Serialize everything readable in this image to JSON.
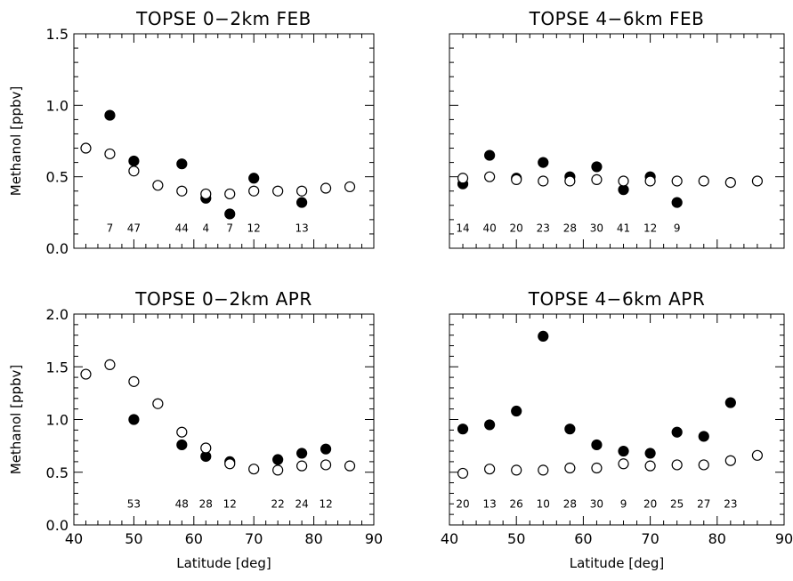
{
  "chart_data": [
    {
      "type": "scatter",
      "title": "TOPSE   0−2km FEB",
      "xlabel": "",
      "ylabel": "Methanol [ppbv]",
      "xlim": [
        40,
        90
      ],
      "ylim": [
        0.0,
        1.5
      ],
      "xticks": [],
      "yticks": [
        "0.0",
        "0.5",
        "1.0",
        "1.5"
      ],
      "series": [
        {
          "marker": "filled",
          "x": [
            46,
            50,
            58,
            62,
            66,
            70,
            78
          ],
          "y": [
            0.93,
            0.61,
            0.59,
            0.35,
            0.24,
            0.49,
            0.32
          ]
        },
        {
          "marker": "open",
          "x": [
            42,
            46,
            50,
            54,
            58,
            62,
            66,
            70,
            74,
            78,
            82,
            86
          ],
          "y": [
            0.7,
            0.66,
            0.54,
            0.44,
            0.4,
            0.38,
            0.38,
            0.4,
            0.4,
            0.4,
            0.42,
            0.43
          ]
        }
      ],
      "counts": [
        {
          "x": 46,
          "label": "7"
        },
        {
          "x": 50,
          "label": "47"
        },
        {
          "x": 58,
          "label": "44"
        },
        {
          "x": 62,
          "label": "4"
        },
        {
          "x": 66,
          "label": "7"
        },
        {
          "x": 70,
          "label": "12"
        },
        {
          "x": 78,
          "label": "13"
        }
      ],
      "count_y": 0.14
    },
    {
      "type": "scatter",
      "title": "TOPSE   4−6km FEB",
      "xlabel": "",
      "ylabel": "",
      "xlim": [
        40,
        90
      ],
      "ylim": [
        0.0,
        1.5
      ],
      "xticks": [],
      "yticks": [],
      "series": [
        {
          "marker": "filled",
          "x": [
            42,
            46,
            50,
            54,
            58,
            62,
            66,
            70,
            74
          ],
          "y": [
            0.45,
            0.65,
            0.49,
            0.6,
            0.5,
            0.57,
            0.41,
            0.5,
            0.32
          ]
        },
        {
          "marker": "open",
          "x": [
            42,
            46,
            50,
            54,
            58,
            62,
            66,
            70,
            74,
            78,
            82,
            86
          ],
          "y": [
            0.49,
            0.5,
            0.48,
            0.47,
            0.47,
            0.48,
            0.47,
            0.47,
            0.47,
            0.47,
            0.46,
            0.47
          ]
        }
      ],
      "counts": [
        {
          "x": 42,
          "label": "14"
        },
        {
          "x": 46,
          "label": "40"
        },
        {
          "x": 50,
          "label": "20"
        },
        {
          "x": 54,
          "label": "23"
        },
        {
          "x": 58,
          "label": "28"
        },
        {
          "x": 62,
          "label": "30"
        },
        {
          "x": 66,
          "label": "41"
        },
        {
          "x": 70,
          "label": "12"
        },
        {
          "x": 74,
          "label": "9"
        }
      ],
      "count_y": 0.14
    },
    {
      "type": "scatter",
      "title": "TOPSE   0−2km APR",
      "xlabel": "Latitude [deg]",
      "ylabel": "Methanol [ppbv]",
      "xlim": [
        40,
        90
      ],
      "ylim": [
        0.0,
        2.0
      ],
      "xticks": [
        "40",
        "50",
        "60",
        "70",
        "80",
        "90"
      ],
      "yticks": [
        "0.0",
        "0.5",
        "1.0",
        "1.5",
        "2.0"
      ],
      "series": [
        {
          "marker": "filled",
          "x": [
            50,
            58,
            62,
            66,
            74,
            78,
            82
          ],
          "y": [
            1.0,
            0.76,
            0.65,
            0.6,
            0.62,
            0.68,
            0.72
          ]
        },
        {
          "marker": "open",
          "x": [
            42,
            46,
            50,
            54,
            58,
            62,
            66,
            70,
            74,
            78,
            82,
            86
          ],
          "y": [
            1.43,
            1.52,
            1.36,
            1.15,
            0.88,
            0.73,
            0.58,
            0.53,
            0.52,
            0.56,
            0.57,
            0.56
          ]
        }
      ],
      "counts": [
        {
          "x": 50,
          "label": "53"
        },
        {
          "x": 58,
          "label": "48"
        },
        {
          "x": 62,
          "label": "28"
        },
        {
          "x": 66,
          "label": "12"
        },
        {
          "x": 74,
          "label": "22"
        },
        {
          "x": 78,
          "label": "24"
        },
        {
          "x": 82,
          "label": "12"
        }
      ],
      "count_y": 0.2
    },
    {
      "type": "scatter",
      "title": "TOPSE   4−6km APR",
      "xlabel": "Latitude [deg]",
      "ylabel": "",
      "xlim": [
        40,
        90
      ],
      "ylim": [
        0.0,
        2.0
      ],
      "xticks": [
        "40",
        "50",
        "60",
        "70",
        "80",
        "90"
      ],
      "yticks": [],
      "series": [
        {
          "marker": "filled",
          "x": [
            42,
            46,
            50,
            54,
            58,
            62,
            66,
            70,
            74,
            78,
            82
          ],
          "y": [
            0.91,
            0.95,
            1.08,
            1.79,
            0.91,
            0.76,
            0.7,
            0.68,
            0.88,
            0.84,
            1.16
          ]
        },
        {
          "marker": "open",
          "x": [
            42,
            46,
            50,
            54,
            58,
            62,
            66,
            70,
            74,
            78,
            82,
            86
          ],
          "y": [
            0.49,
            0.53,
            0.52,
            0.52,
            0.54,
            0.54,
            0.58,
            0.56,
            0.57,
            0.57,
            0.61,
            0.66
          ]
        }
      ],
      "counts": [
        {
          "x": 42,
          "label": "20"
        },
        {
          "x": 46,
          "label": "13"
        },
        {
          "x": 50,
          "label": "26"
        },
        {
          "x": 54,
          "label": "10"
        },
        {
          "x": 58,
          "label": "28"
        },
        {
          "x": 62,
          "label": "30"
        },
        {
          "x": 66,
          "label": "9"
        },
        {
          "x": 70,
          "label": "20"
        },
        {
          "x": 74,
          "label": "25"
        },
        {
          "x": 78,
          "label": "27"
        },
        {
          "x": 82,
          "label": "23"
        }
      ],
      "count_y": 0.2
    }
  ]
}
